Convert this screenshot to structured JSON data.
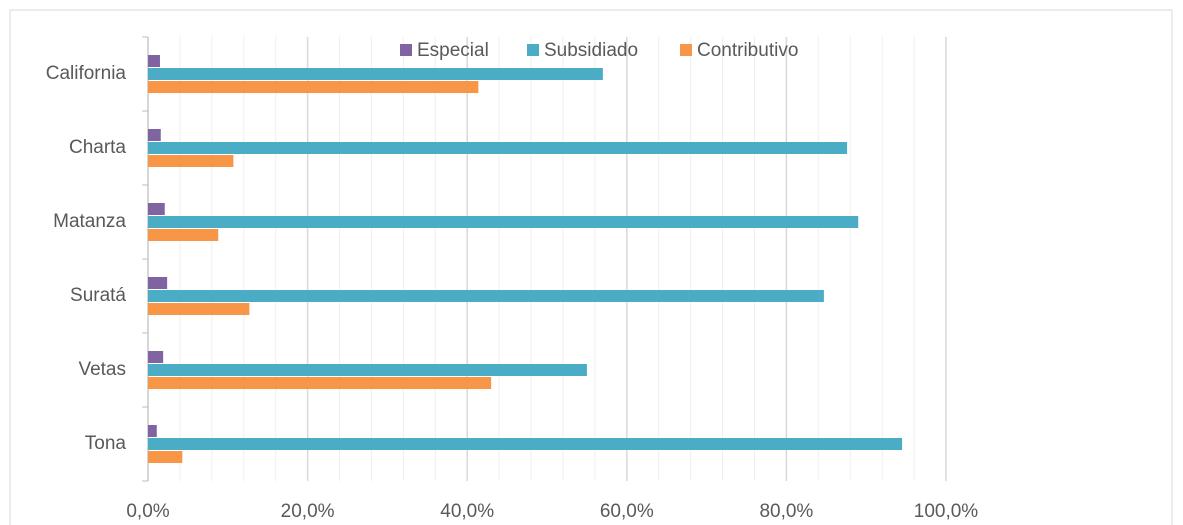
{
  "chart_data": {
    "type": "bar",
    "orientation": "horizontal",
    "categories": [
      "California",
      "Charta",
      "Matanza",
      "Suratá",
      "Vetas",
      "Tona"
    ],
    "series": [
      {
        "name": "Especial",
        "color": "#8064a2",
        "values": [
          1.5,
          1.6,
          2.1,
          2.4,
          1.9,
          1.1
        ]
      },
      {
        "name": "Subsidiado",
        "color": "#4bacc6",
        "values": [
          57.0,
          87.6,
          89.0,
          84.7,
          55.0,
          94.5
        ]
      },
      {
        "name": "Contributivo",
        "color": "#f79646",
        "values": [
          41.4,
          10.7,
          8.8,
          12.7,
          43.0,
          4.3
        ]
      }
    ],
    "xlim": [
      0,
      100
    ],
    "xticks": [
      {
        "value": 0,
        "label": "0,0%"
      },
      {
        "value": 20,
        "label": "20,0%"
      },
      {
        "value": 40,
        "label": "40,0%"
      },
      {
        "value": 60,
        "label": "60,0%"
      },
      {
        "value": 80,
        "label": "80,0%"
      },
      {
        "value": 100,
        "label": "100,0%"
      }
    ],
    "grid": true,
    "minor_grid": true,
    "legend": "top"
  }
}
